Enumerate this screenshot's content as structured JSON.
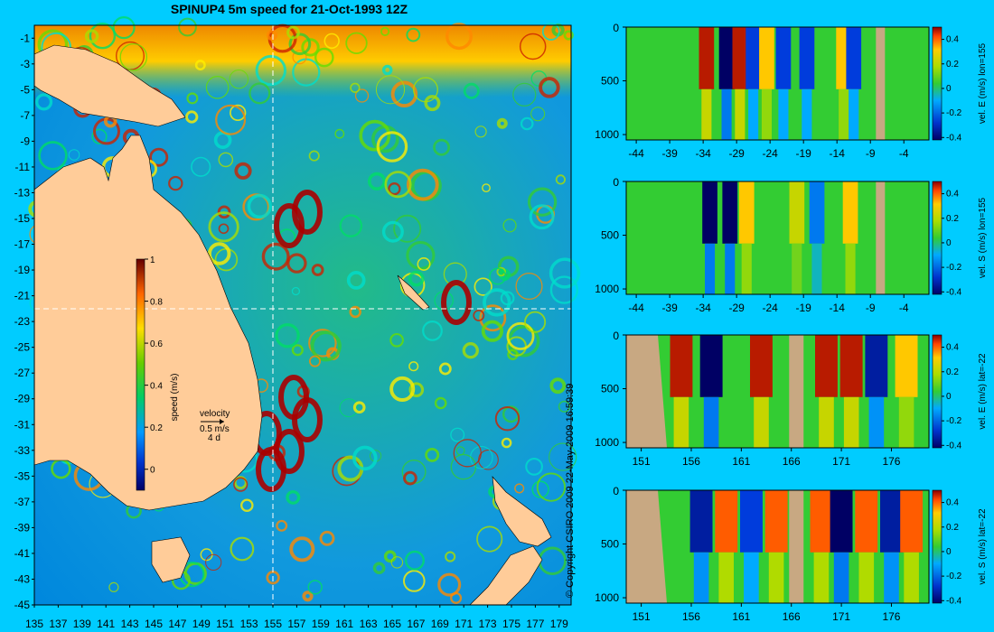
{
  "title": "SPINUP4 5m speed for 21-Oct-1993 12Z",
  "copyright": "© Copyright CSIRO 2009   22-May-2009 16:59:39",
  "velocity_key": {
    "label": "velocity",
    "speed": "0.5 m/s",
    "time": "4 d"
  },
  "colors": {
    "background": "#00ccff",
    "land_map": "#ffcc99",
    "land_section": "#c8a882",
    "section_fill": "#33cc33"
  },
  "chart_data": [
    {
      "type": "heatmap",
      "title": "SPINUP4 5m speed for 21-Oct-1993 12Z",
      "x_ticks": [
        135,
        137,
        139,
        141,
        143,
        145,
        147,
        149,
        151,
        153,
        155,
        157,
        159,
        161,
        163,
        165,
        167,
        169,
        171,
        173,
        175,
        177,
        179
      ],
      "y_ticks": [
        -1,
        -3,
        -5,
        -7,
        -9,
        -11,
        -13,
        -15,
        -17,
        -19,
        -21,
        -23,
        -25,
        -27,
        -29,
        -31,
        -33,
        -35,
        -37,
        -39,
        -41,
        -43,
        -45
      ],
      "xlim": [
        135,
        180
      ],
      "ylim": [
        -45,
        0
      ],
      "colorbar": {
        "label": "speed (m/s)",
        "ticks": [
          0,
          0.2,
          0.4,
          0.6,
          0.8,
          1
        ],
        "range": [
          -0.1,
          1
        ]
      },
      "section_lines": {
        "lon": 155,
        "lat": -22
      }
    },
    {
      "type": "heatmap",
      "ylabel": "vel. E (m/s) lon=155",
      "x_ticks": [
        -44,
        -39,
        -34,
        -29,
        -24,
        -19,
        -14,
        -9,
        -4
      ],
      "y_ticks": [
        0,
        500,
        1000
      ],
      "colorbar_ticks": [
        0.4,
        0.2,
        0,
        -0.2,
        -0.4
      ],
      "features": [
        {
          "x": -33.5,
          "value": 0.5
        },
        {
          "x": -30.5,
          "value": -0.5
        },
        {
          "x": -28.5,
          "value": 0.5
        },
        {
          "x": -26.5,
          "value": -0.3
        },
        {
          "x": -24.5,
          "value": 0.3
        },
        {
          "x": -22,
          "value": -0.3
        },
        {
          "x": -18.5,
          "value": -0.3
        },
        {
          "x": -13,
          "value": 0.3
        },
        {
          "x": -11.5,
          "value": -0.3
        }
      ]
    },
    {
      "type": "heatmap",
      "ylabel": "vel. S (m/s) lon=155",
      "x_ticks": [
        -44,
        -39,
        -34,
        -29,
        -24,
        -19,
        -14,
        -9,
        -4
      ],
      "y_ticks": [
        0,
        500,
        1000
      ],
      "colorbar_ticks": [
        0.4,
        0.2,
        0,
        -0.2,
        -0.4
      ],
      "features": [
        {
          "x": -33,
          "value": -0.5
        },
        {
          "x": -30,
          "value": -0.5
        },
        {
          "x": -27.5,
          "value": 0.3
        },
        {
          "x": -20,
          "value": 0.2
        },
        {
          "x": -17,
          "value": -0.2
        },
        {
          "x": -12,
          "value": 0.3
        }
      ]
    },
    {
      "type": "heatmap",
      "ylabel": "vel. E (m/s) lat=-22",
      "x_ticks": [
        151,
        156,
        161,
        166,
        171,
        176
      ],
      "y_ticks": [
        0,
        500,
        1000
      ],
      "colorbar_ticks": [
        0.4,
        0.2,
        0,
        -0.2,
        -0.4
      ],
      "features": [
        {
          "x": 155,
          "value": 0.5
        },
        {
          "x": 158,
          "value": -0.5
        },
        {
          "x": 163,
          "value": 0.5
        },
        {
          "x": 169.5,
          "value": 0.5
        },
        {
          "x": 172,
          "value": 0.5
        },
        {
          "x": 174.5,
          "value": -0.4
        },
        {
          "x": 177.5,
          "value": 0.3
        }
      ]
    },
    {
      "type": "heatmap",
      "ylabel": "vel. S (m/s) lat=-22",
      "x_ticks": [
        151,
        156,
        161,
        166,
        171,
        176
      ],
      "y_ticks": [
        0,
        500,
        1000
      ],
      "colorbar_ticks": [
        0.4,
        0.2,
        0,
        -0.2,
        -0.4
      ],
      "features": [
        {
          "x": 157,
          "value": -0.4
        },
        {
          "x": 159.5,
          "value": 0.4
        },
        {
          "x": 162,
          "value": -0.3
        },
        {
          "x": 164.5,
          "value": 0.4
        },
        {
          "x": 169,
          "value": 0.4
        },
        {
          "x": 171,
          "value": -0.5
        },
        {
          "x": 173.5,
          "value": 0.4
        },
        {
          "x": 176,
          "value": -0.4
        },
        {
          "x": 178,
          "value": 0.4
        }
      ]
    }
  ]
}
